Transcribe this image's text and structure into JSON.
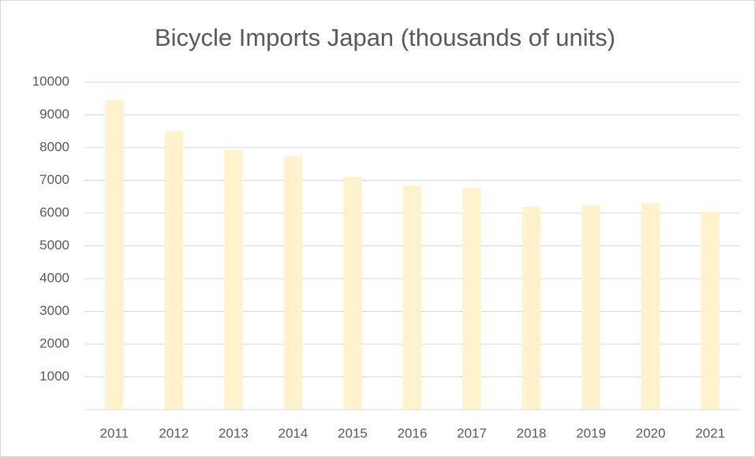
{
  "chart_data": {
    "type": "bar",
    "title": "Bicycle Imports Japan (thousands of units)",
    "categories": [
      "2011",
      "2012",
      "2013",
      "2014",
      "2015",
      "2016",
      "2017",
      "2018",
      "2019",
      "2020",
      "2021"
    ],
    "values": [
      9450,
      8500,
      7930,
      7730,
      7110,
      6840,
      6770,
      6190,
      6240,
      6310,
      6050
    ],
    "color": "#fff2cc",
    "ylim": [
      0,
      10000
    ],
    "yticks": [
      1000,
      2000,
      3000,
      4000,
      5000,
      6000,
      7000,
      8000,
      9000,
      10000
    ],
    "grid": true
  }
}
